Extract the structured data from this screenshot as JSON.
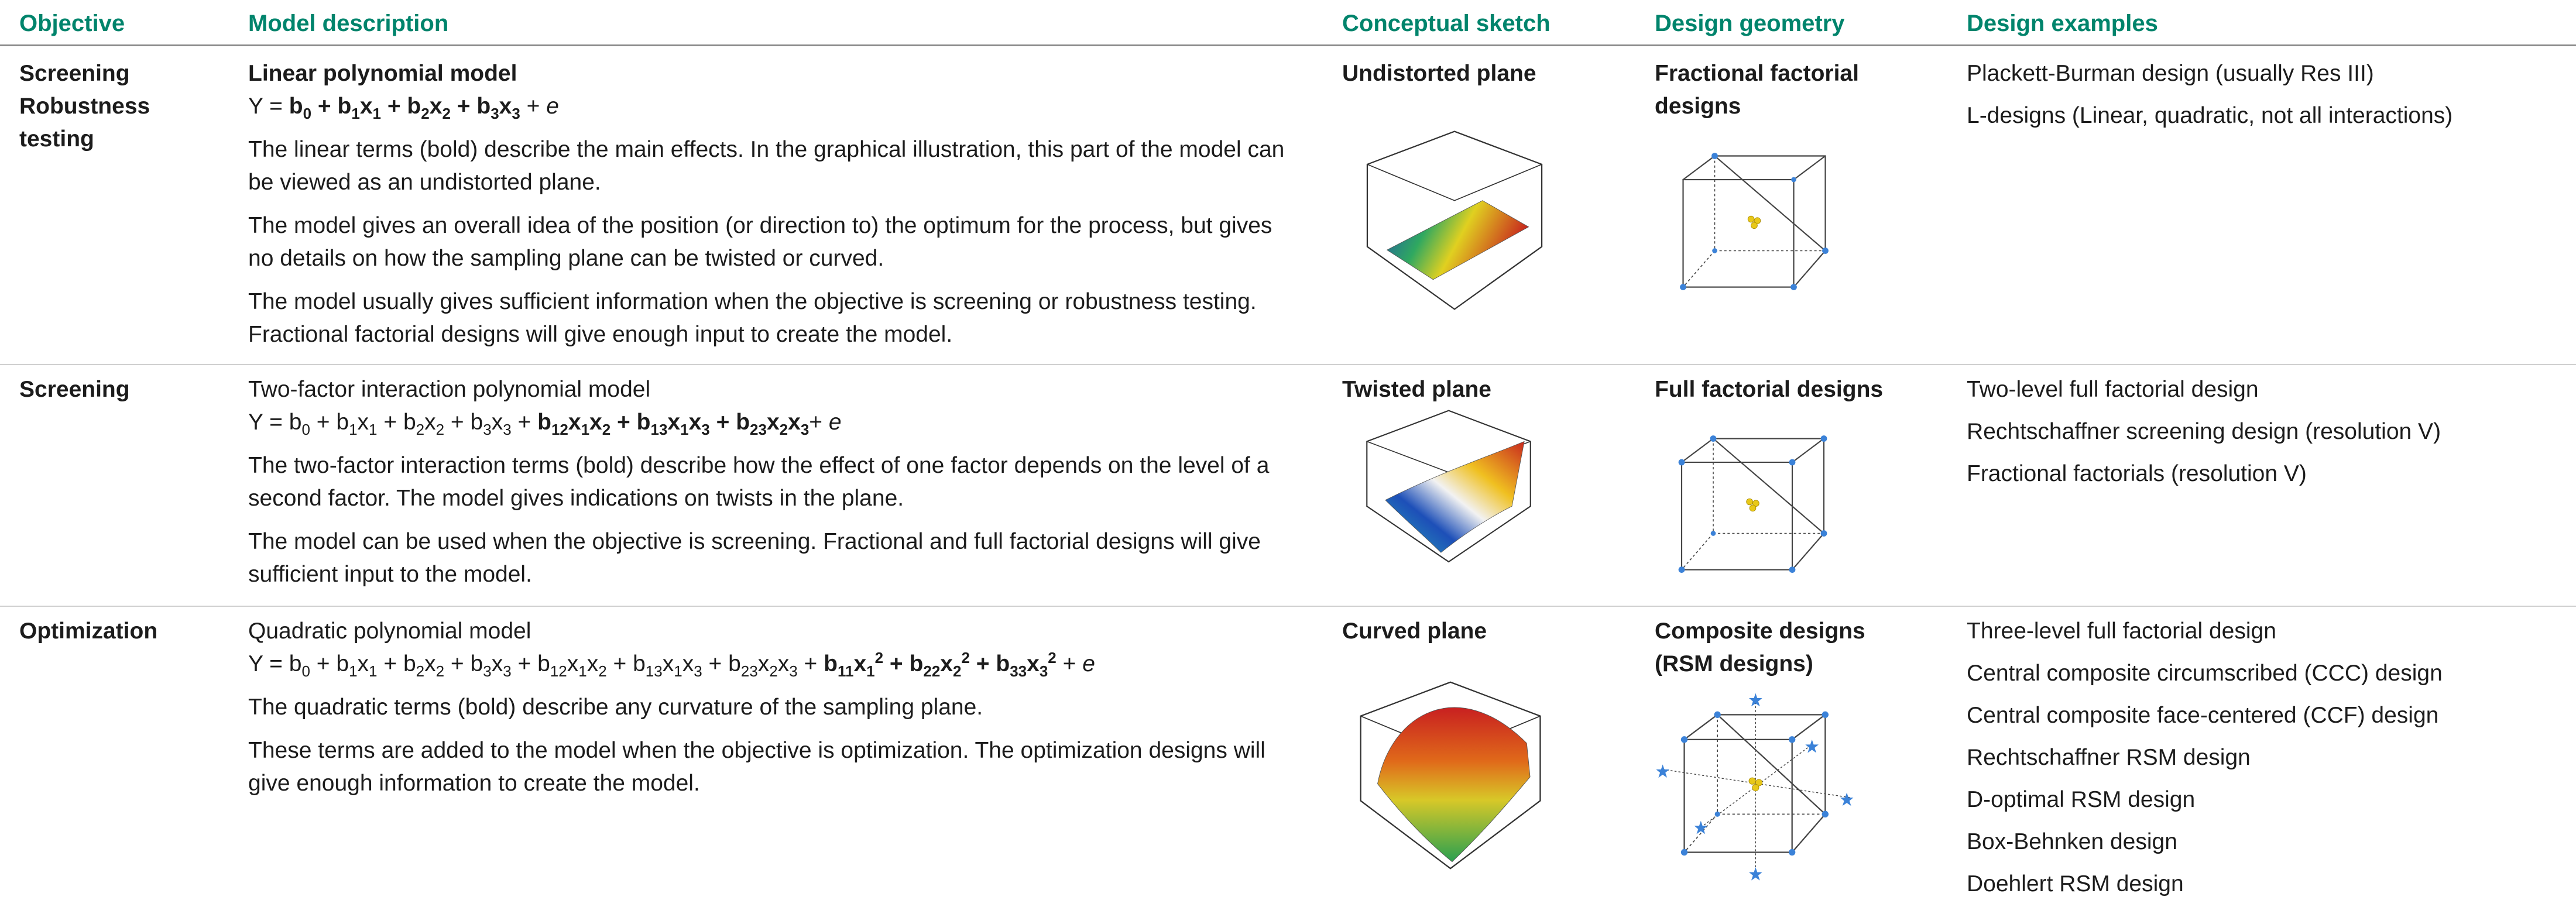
{
  "header": [
    "Objective",
    "Model description",
    "Conceptual sketch",
    "Design geometry",
    "Design examples"
  ],
  "rows": [
    {
      "objective": [
        "Screening",
        "Robustness testing"
      ],
      "model_title": "Linear polynomial model",
      "model_title_bold": true,
      "formula": [
        {
          "text": "Y = "
        },
        {
          "text": "b",
          "sub": "0",
          "bold": true
        },
        {
          "text": " + b",
          "sub": "1",
          "bold": true
        },
        {
          "text": "x",
          "sub": "1",
          "bold": true
        },
        {
          "text": " + b",
          "sub": "2",
          "bold": true
        },
        {
          "text": "x",
          "sub": "2",
          "bold": true
        },
        {
          "text": " + b",
          "sub": "3",
          "bold": true
        },
        {
          "text": "x",
          "sub": "3",
          "bold": true
        },
        {
          "text": " + "
        },
        {
          "text": "e",
          "italic": true
        }
      ],
      "paragraphs": [
        "The linear terms (bold) describe the main effects. In the graphical illustration, this part of the model can be viewed as an undistorted plane.",
        "The model gives an overall idea of the position (or direction to) the optimum for the process, but gives no details on how the sampling plane can be twisted or curved.",
        "The model usually gives sufficient information when the objective is screening or robustness testing. Fractional factorial designs will give enough input to create the model."
      ],
      "sketch": "Undistorted plane",
      "geometry": "Fractional factorial designs",
      "examples": [
        "Plackett-Burman design (usually Res III)",
        "L-designs (Linear, quadratic, not all interactions)"
      ]
    },
    {
      "objective": [
        "Screening"
      ],
      "model_title": "Two-factor interaction polynomial model",
      "model_title_bold": false,
      "formula": [
        {
          "text": "Y = b",
          "sub": "0"
        },
        {
          "text": " + b",
          "sub": "1"
        },
        {
          "text": "x",
          "sub": "1"
        },
        {
          "text": " + b",
          "sub": "2"
        },
        {
          "text": "x",
          "sub": "2"
        },
        {
          "text": " + b",
          "sub": "3"
        },
        {
          "text": "x",
          "sub": "3"
        },
        {
          "text": " + "
        },
        {
          "text": "b",
          "sub": "12",
          "bold": true
        },
        {
          "text": "x",
          "sub": "1",
          "bold": true
        },
        {
          "text": "x",
          "sub": "2",
          "bold": true
        },
        {
          "text": " + b",
          "sub": "13",
          "bold": true
        },
        {
          "text": "x",
          "sub": "1",
          "bold": true
        },
        {
          "text": "x",
          "sub": "3",
          "bold": true
        },
        {
          "text": " + b",
          "sub": "23",
          "bold": true
        },
        {
          "text": "x",
          "sub": "2",
          "bold": true
        },
        {
          "text": "x",
          "sub": "3",
          "bold": true
        },
        {
          "text": "+ "
        },
        {
          "text": "e",
          "italic": true
        }
      ],
      "paragraphs": [
        "The two-factor interaction terms (bold) describe how the effect of one factor depends on the level of a second factor. The model gives indications on twists in the plane.",
        "The model can be used when the objective is screening. Fractional and full factorial designs will give sufficient input to the model."
      ],
      "sketch": "Twisted plane",
      "geometry": "Full factorial designs",
      "examples": [
        "Two-level full factorial design",
        "Rechtschaffner screening design (resolution V)",
        "Fractional factorials (resolution V)"
      ]
    },
    {
      "objective": [
        "Optimization"
      ],
      "model_title": "Quadratic polynomial model",
      "model_title_bold": false,
      "formula": [
        {
          "text": "Y = b",
          "sub": "0"
        },
        {
          "text": " + b",
          "sub": "1"
        },
        {
          "text": "x",
          "sub": "1"
        },
        {
          "text": " + b",
          "sub": "2"
        },
        {
          "text": "x",
          "sub": "2"
        },
        {
          "text": " + b",
          "sub": "3"
        },
        {
          "text": "x",
          "sub": "3"
        },
        {
          "text": " + b",
          "sub": "12"
        },
        {
          "text": "x",
          "sub": "1"
        },
        {
          "text": "x",
          "sub": "2"
        },
        {
          "text": " + b",
          "sub": "13"
        },
        {
          "text": "x",
          "sub": "1"
        },
        {
          "text": "x",
          "sub": "3"
        },
        {
          "text": " + b",
          "sub": "23"
        },
        {
          "text": "x",
          "sub": "2"
        },
        {
          "text": "x",
          "sub": "3"
        },
        {
          "text": " + "
        },
        {
          "text": "b",
          "sub": "11",
          "bold": true
        },
        {
          "text": "x",
          "sub": "1",
          "sup": "2",
          "bold": true
        },
        {
          "text": " + b",
          "sub": "22",
          "bold": true
        },
        {
          "text": "x",
          "sub": "2",
          "sup": "2",
          "bold": true
        },
        {
          "text": " + b",
          "sub": "33",
          "bold": true
        },
        {
          "text": "x",
          "sub": "3",
          "sup": "2",
          "bold": true
        },
        {
          "text": " + "
        },
        {
          "text": "e",
          "italic": true
        }
      ],
      "paragraphs": [
        "The quadratic terms (bold) describe any curvature of the sampling plane.",
        "These terms are added to the model when the objective is optimization. The optimization designs will give enough information to create the model."
      ],
      "sketch": "Curved plane",
      "geometry": "Composite designs (RSM designs)",
      "examples": [
        "Three-level full factorial design",
        "Central composite circumscribed (CCC) design",
        "Central composite face-centered (CCF) design",
        "Rechtschaffner RSM design",
        "D-optimal RSM design",
        "Box-Behnken design",
        "Doehlert RSM design"
      ]
    }
  ]
}
